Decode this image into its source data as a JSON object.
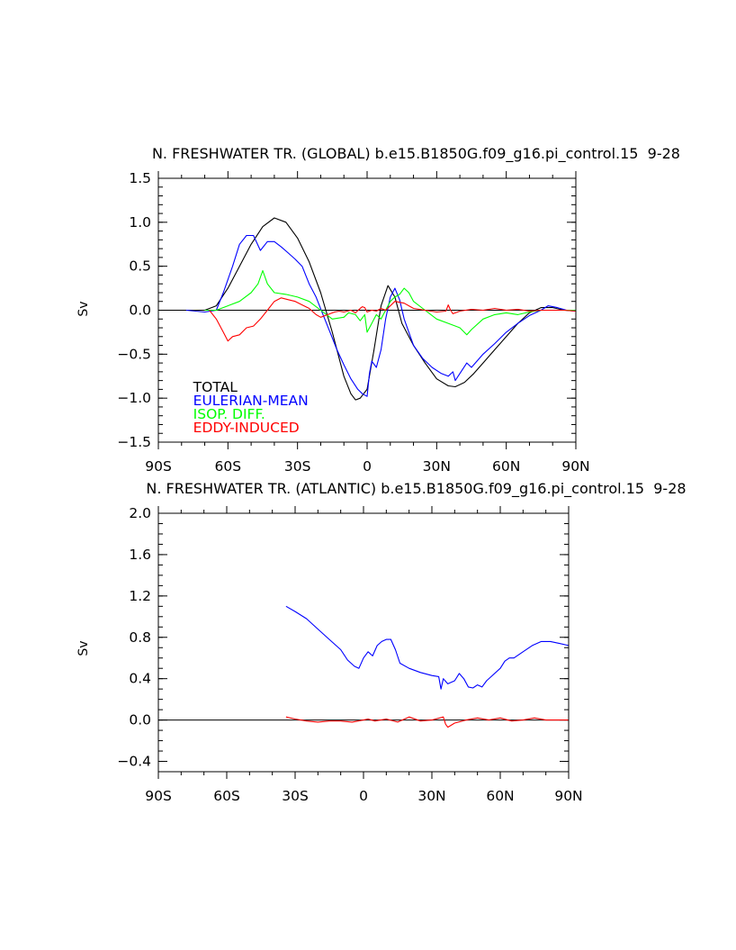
{
  "chart_data": [
    {
      "type": "line",
      "title": "N. FRESHWATER TR. (GLOBAL) b.e15.B1850G.f09_g16.pi_control.15  9-28 ",
      "xlabel": "",
      "ylabel": "Sv",
      "xlim": [
        -90,
        90
      ],
      "ylim": [
        -1.5,
        1.5
      ],
      "x_ticks": [
        -90,
        -60,
        -30,
        0,
        30,
        60,
        90
      ],
      "x_tick_labels": [
        "90S",
        "60S",
        "30S",
        "0",
        "30N",
        "60N",
        "90N"
      ],
      "y_ticks": [
        -1.5,
        -1.0,
        -0.5,
        0.0,
        0.5,
        1.0,
        1.5
      ],
      "y_tick_labels": [
        "−1.5",
        "−1.0",
        "−0.5",
        "0.0",
        "0.5",
        "1.0",
        "1.5"
      ],
      "zero_line": true,
      "grid": false,
      "legend_position": "bottom-left",
      "series": [
        {
          "name": "TOTAL",
          "color": "#000000",
          "x": [
            -78,
            -70,
            -65,
            -60,
            -55,
            -50,
            -45,
            -40,
            -35,
            -30,
            -25,
            -20,
            -15,
            -10,
            -7,
            -5,
            -3,
            0,
            3,
            6,
            9,
            12,
            15,
            20,
            25,
            30,
            35,
            38,
            42,
            46,
            50,
            55,
            60,
            65,
            70,
            75,
            80,
            85,
            90
          ],
          "y": [
            0.0,
            0.0,
            0.05,
            0.25,
            0.5,
            0.75,
            0.95,
            1.05,
            1.0,
            0.82,
            0.55,
            0.2,
            -0.25,
            -0.75,
            -0.95,
            -1.02,
            -1.0,
            -0.9,
            -0.45,
            0.05,
            0.28,
            0.15,
            -0.15,
            -0.4,
            -0.6,
            -0.78,
            -0.86,
            -0.87,
            -0.82,
            -0.72,
            -0.6,
            -0.45,
            -0.3,
            -0.15,
            -0.03,
            0.03,
            0.03,
            0.0,
            -0.01
          ]
        },
        {
          "name": "EULERIAN-MEAN",
          "color": "#0000ff",
          "x": [
            -78,
            -70,
            -65,
            -62,
            -58,
            -55,
            -52,
            -49,
            -46,
            -43,
            -40,
            -37,
            -34,
            -31,
            -28,
            -25,
            -22,
            -19,
            -16,
            -13,
            -10,
            -7,
            -4,
            -2,
            0,
            1,
            2,
            4,
            6,
            8,
            10,
            12,
            14,
            16,
            18,
            20,
            24,
            28,
            32,
            35,
            37,
            38,
            40,
            43,
            45,
            50,
            55,
            60,
            65,
            70,
            75,
            78,
            82,
            86,
            90
          ],
          "y": [
            0.0,
            -0.02,
            0.0,
            0.2,
            0.5,
            0.75,
            0.85,
            0.85,
            0.68,
            0.78,
            0.78,
            0.72,
            0.65,
            0.58,
            0.5,
            0.3,
            0.15,
            -0.05,
            -0.25,
            -0.45,
            -0.62,
            -0.78,
            -0.9,
            -0.95,
            -0.98,
            -0.72,
            -0.58,
            -0.65,
            -0.45,
            -0.1,
            0.15,
            0.25,
            0.12,
            -0.1,
            -0.25,
            -0.4,
            -0.55,
            -0.65,
            -0.72,
            -0.75,
            -0.7,
            -0.8,
            -0.72,
            -0.6,
            -0.65,
            -0.5,
            -0.38,
            -0.25,
            -0.15,
            -0.06,
            0.0,
            0.05,
            0.03,
            0.0,
            -0.01
          ]
        },
        {
          "name": "ISOP. DIFF.",
          "color": "#00ff00",
          "x": [
            -70,
            -65,
            -60,
            -55,
            -50,
            -47,
            -45,
            -43,
            -40,
            -35,
            -30,
            -25,
            -20,
            -15,
            -10,
            -8,
            -5,
            -3,
            -1,
            0,
            2,
            4,
            6,
            8,
            10,
            12,
            14,
            16,
            18,
            20,
            25,
            30,
            35,
            40,
            43,
            45,
            50,
            55,
            60,
            65,
            70,
            75,
            80,
            85,
            90
          ],
          "y": [
            0.0,
            0.0,
            0.05,
            0.1,
            0.2,
            0.3,
            0.45,
            0.3,
            0.2,
            0.18,
            0.15,
            0.1,
            0.0,
            -0.1,
            -0.08,
            -0.03,
            -0.05,
            -0.12,
            -0.05,
            -0.25,
            -0.15,
            -0.05,
            -0.1,
            0.0,
            0.1,
            0.15,
            0.18,
            0.25,
            0.2,
            0.1,
            0.0,
            -0.1,
            -0.15,
            -0.2,
            -0.28,
            -0.22,
            -0.1,
            -0.05,
            -0.03,
            -0.05,
            -0.02,
            0.0,
            0.0,
            0.0,
            0.0
          ]
        },
        {
          "name": "EDDY-INDUCED",
          "color": "#ff0000",
          "x": [
            -68,
            -65,
            -62,
            -60,
            -58,
            -55,
            -52,
            -49,
            -46,
            -43,
            -40,
            -37,
            -34,
            -31,
            -28,
            -25,
            -22,
            -20,
            -17,
            -14,
            -12,
            -10,
            -7,
            -5,
            -3,
            -2,
            -1,
            0,
            2,
            4,
            6,
            8,
            10,
            12,
            14,
            16,
            18,
            20,
            25,
            30,
            34,
            35,
            36,
            37,
            40,
            45,
            50,
            55,
            60,
            65,
            70,
            75,
            80,
            85,
            90
          ],
          "y": [
            0.0,
            -0.1,
            -0.25,
            -0.35,
            -0.3,
            -0.28,
            -0.2,
            -0.18,
            -0.1,
            0.0,
            0.1,
            0.14,
            0.12,
            0.1,
            0.06,
            0.02,
            -0.05,
            -0.08,
            -0.05,
            -0.02,
            -0.01,
            -0.02,
            0.0,
            -0.03,
            0.02,
            0.04,
            0.03,
            -0.02,
            0.0,
            -0.01,
            0.02,
            0.0,
            0.05,
            0.1,
            0.09,
            0.08,
            0.05,
            0.02,
            0.0,
            -0.02,
            -0.01,
            0.06,
            0.0,
            -0.04,
            -0.01,
            0.01,
            0.0,
            0.02,
            0.0,
            0.01,
            -0.01,
            0.0,
            0.0,
            0.0,
            -0.01
          ]
        }
      ]
    },
    {
      "type": "line",
      "title": "N. FRESHWATER TR. (ATLANTIC) b.e15.B1850G.f09_g16.pi_control.15  9-28 ",
      "xlabel": "",
      "ylabel": "Sv",
      "xlim": [
        -90,
        90
      ],
      "ylim": [
        -0.5,
        2.0
      ],
      "x_ticks": [
        -90,
        -60,
        -30,
        0,
        30,
        60,
        90
      ],
      "x_tick_labels": [
        "90S",
        "60S",
        "30S",
        "0",
        "30N",
        "60N",
        "90N"
      ],
      "y_ticks": [
        -0.4,
        0.0,
        0.4,
        0.8,
        1.2,
        1.6,
        2.0
      ],
      "y_tick_labels": [
        "−0.4",
        "0.0",
        "0.4",
        "0.8",
        "1.2",
        "1.6",
        "2.0"
      ],
      "zero_line": true,
      "grid": false,
      "series": [
        {
          "name": "",
          "color": "#0000ff",
          "x": [
            -34,
            -30,
            -25,
            -20,
            -15,
            -10,
            -7,
            -4,
            -2,
            0,
            2,
            4,
            6,
            8,
            10,
            12,
            14,
            16,
            20,
            25,
            30,
            33,
            34,
            35,
            37,
            40,
            42,
            44,
            46,
            48,
            50,
            52,
            54,
            56,
            60,
            62,
            64,
            66,
            70,
            74,
            78,
            82,
            86,
            90
          ],
          "y": [
            1.1,
            1.05,
            0.98,
            0.88,
            0.78,
            0.68,
            0.58,
            0.52,
            0.5,
            0.6,
            0.66,
            0.62,
            0.72,
            0.76,
            0.78,
            0.78,
            0.68,
            0.55,
            0.5,
            0.46,
            0.43,
            0.42,
            0.3,
            0.4,
            0.35,
            0.38,
            0.45,
            0.4,
            0.32,
            0.31,
            0.34,
            0.32,
            0.38,
            0.42,
            0.5,
            0.57,
            0.6,
            0.6,
            0.66,
            0.72,
            0.76,
            0.76,
            0.74,
            0.72
          ]
        },
        {
          "name": "",
          "color": "#ff0000",
          "x": [
            -34,
            -30,
            -25,
            -20,
            -15,
            -10,
            -5,
            0,
            2,
            5,
            10,
            15,
            20,
            25,
            30,
            35,
            36,
            37,
            40,
            45,
            50,
            55,
            60,
            65,
            70,
            75,
            80,
            85,
            90
          ],
          "y": [
            0.03,
            0.01,
            -0.01,
            -0.02,
            -0.01,
            -0.01,
            -0.02,
            0.0,
            0.01,
            -0.01,
            0.01,
            -0.02,
            0.03,
            -0.01,
            0.0,
            0.03,
            -0.04,
            -0.07,
            -0.03,
            0.0,
            0.02,
            0.0,
            0.02,
            -0.01,
            0.0,
            0.02,
            0.0,
            0.0,
            0.0
          ]
        }
      ]
    }
  ]
}
